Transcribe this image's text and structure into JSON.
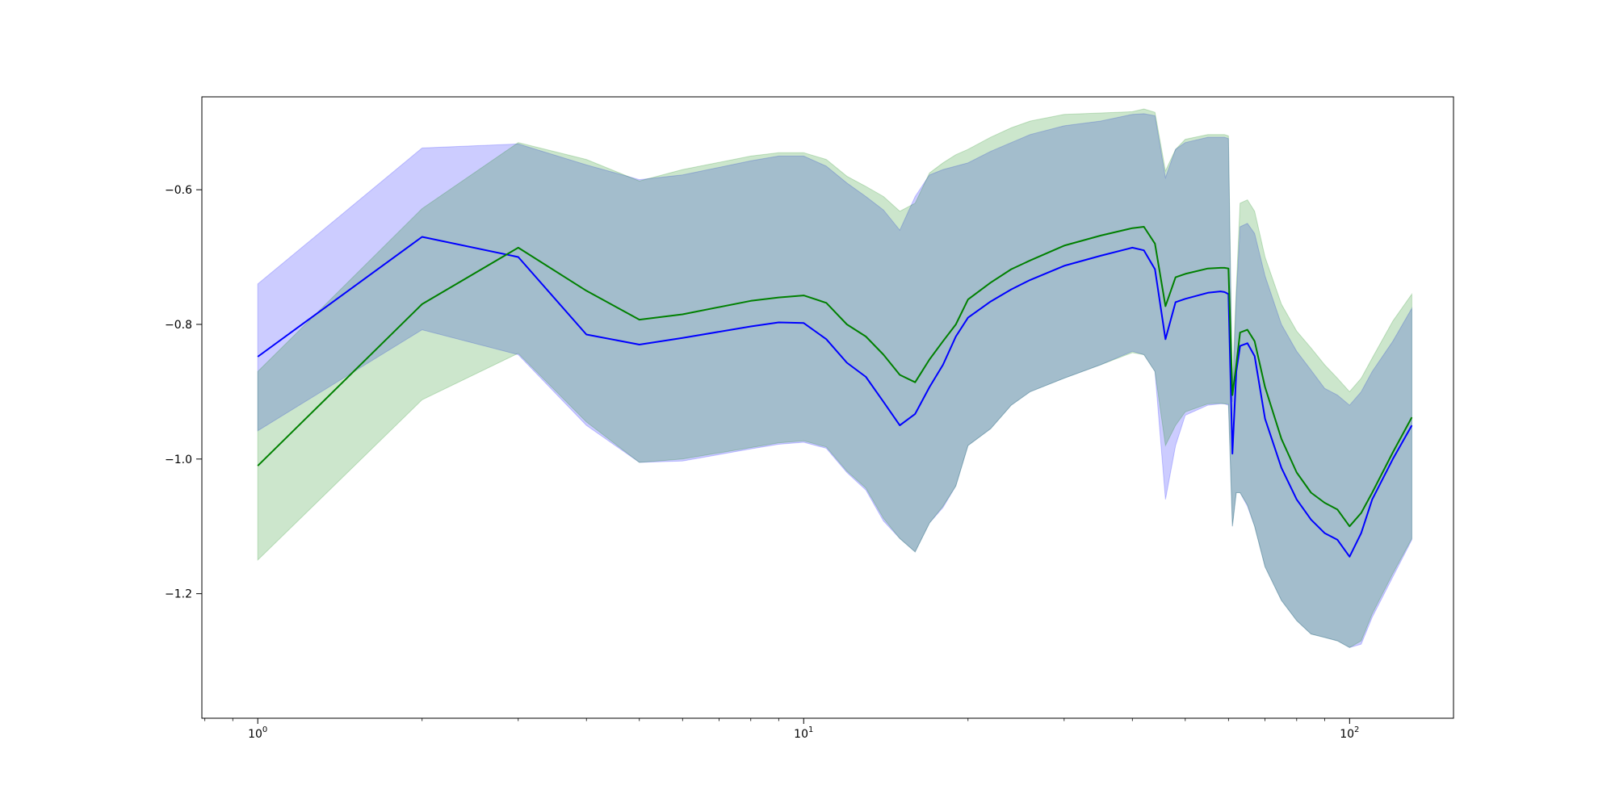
{
  "chart_data": {
    "type": "line",
    "title": "",
    "xlabel": "",
    "ylabel": "",
    "xscale": "log",
    "xlim": [
      0.79,
      155
    ],
    "ylim": [
      -1.385,
      -0.462
    ],
    "grid": false,
    "legend": "none",
    "x_ticks": [
      {
        "value": 1,
        "base": "10",
        "exp": "0"
      },
      {
        "value": 10,
        "base": "10",
        "exp": "1"
      },
      {
        "value": 100,
        "base": "10",
        "exp": "2"
      }
    ],
    "y_ticks": [
      {
        "value": -0.6,
        "label": "−0.6"
      },
      {
        "value": -0.8,
        "label": "−0.8"
      },
      {
        "value": -1.0,
        "label": "−1.0"
      },
      {
        "value": -1.2,
        "label": "−1.2"
      }
    ],
    "series": [
      {
        "color": "#0000ff",
        "band_color": "#0000ff",
        "band_opacity": 0.2,
        "x": [
          1,
          2,
          3,
          4,
          5,
          6,
          8,
          9,
          10,
          11,
          12,
          13,
          14,
          15,
          16,
          17,
          18,
          19,
          20,
          22,
          24,
          26,
          30,
          35,
          40,
          42,
          44,
          46,
          48,
          50,
          55,
          58,
          59,
          60,
          61,
          62,
          63,
          65,
          67,
          70,
          75,
          80,
          85,
          90,
          95,
          100,
          105,
          110,
          120,
          130
        ],
        "y": [
          -0.848,
          -0.67,
          -0.7,
          -0.815,
          -0.83,
          -0.82,
          -0.803,
          -0.797,
          -0.798,
          -0.822,
          -0.857,
          -0.878,
          -0.915,
          -0.95,
          -0.933,
          -0.893,
          -0.86,
          -0.818,
          -0.79,
          -0.766,
          -0.748,
          -0.734,
          -0.713,
          -0.698,
          -0.686,
          -0.69,
          -0.718,
          -0.822,
          -0.767,
          -0.762,
          -0.753,
          -0.751,
          -0.752,
          -0.755,
          -0.992,
          -0.87,
          -0.832,
          -0.828,
          -0.847,
          -0.94,
          -1.013,
          -1.06,
          -1.09,
          -1.11,
          -1.12,
          -1.145,
          -1.11,
          -1.06,
          -1.0,
          -0.95
        ],
        "lower": [
          -0.958,
          -0.808,
          -0.845,
          -0.95,
          -1.005,
          -1.003,
          -0.985,
          -0.978,
          -0.975,
          -0.984,
          -1.02,
          -1.046,
          -1.092,
          -1.118,
          -1.138,
          -1.095,
          -1.072,
          -1.04,
          -0.98,
          -0.955,
          -0.92,
          -0.9,
          -0.88,
          -0.86,
          -0.84,
          -0.845,
          -0.87,
          -1.06,
          -0.98,
          -0.935,
          -0.92,
          -0.918,
          -0.918,
          -0.92,
          -1.1,
          -1.05,
          -1.05,
          -1.07,
          -1.1,
          -1.16,
          -1.21,
          -1.24,
          -1.26,
          -1.265,
          -1.27,
          -1.28,
          -1.275,
          -1.235,
          -1.175,
          -1.12
        ],
        "upper": [
          -0.74,
          -0.538,
          -0.532,
          -0.563,
          -0.585,
          -0.578,
          -0.557,
          -0.55,
          -0.55,
          -0.565,
          -0.59,
          -0.61,
          -0.63,
          -0.66,
          -0.61,
          -0.578,
          -0.57,
          -0.565,
          -0.56,
          -0.543,
          -0.53,
          -0.518,
          -0.505,
          -0.498,
          -0.488,
          -0.487,
          -0.49,
          -0.582,
          -0.54,
          -0.53,
          -0.522,
          -0.522,
          -0.522,
          -0.524,
          -0.915,
          -0.76,
          -0.655,
          -0.65,
          -0.665,
          -0.728,
          -0.8,
          -0.84,
          -0.868,
          -0.895,
          -0.905,
          -0.92,
          -0.9,
          -0.87,
          -0.825,
          -0.776
        ]
      },
      {
        "color": "#008000",
        "band_color": "#008000",
        "band_opacity": 0.2,
        "x": [
          1,
          2,
          3,
          4,
          5,
          6,
          8,
          9,
          10,
          11,
          12,
          13,
          14,
          15,
          16,
          17,
          18,
          19,
          20,
          22,
          24,
          26,
          30,
          35,
          40,
          42,
          44,
          46,
          48,
          50,
          55,
          58,
          59,
          60,
          61,
          62,
          63,
          65,
          67,
          70,
          75,
          80,
          85,
          90,
          95,
          100,
          105,
          110,
          120,
          130
        ],
        "y": [
          -1.01,
          -0.77,
          -0.686,
          -0.75,
          -0.793,
          -0.785,
          -0.765,
          -0.76,
          -0.757,
          -0.768,
          -0.8,
          -0.818,
          -0.845,
          -0.875,
          -0.886,
          -0.852,
          -0.825,
          -0.8,
          -0.763,
          -0.738,
          -0.718,
          -0.705,
          -0.683,
          -0.668,
          -0.657,
          -0.655,
          -0.68,
          -0.773,
          -0.73,
          -0.725,
          -0.717,
          -0.716,
          -0.716,
          -0.717,
          -0.905,
          -0.86,
          -0.812,
          -0.808,
          -0.825,
          -0.893,
          -0.97,
          -1.02,
          -1.05,
          -1.065,
          -1.075,
          -1.1,
          -1.08,
          -1.05,
          -0.99,
          -0.938
        ],
        "lower": [
          -1.15,
          -0.912,
          -0.843,
          -0.945,
          -1.005,
          -1.0,
          -0.983,
          -0.976,
          -0.973,
          -0.982,
          -1.018,
          -1.043,
          -1.088,
          -1.118,
          -1.138,
          -1.095,
          -1.07,
          -1.04,
          -0.98,
          -0.955,
          -0.92,
          -0.9,
          -0.88,
          -0.86,
          -0.842,
          -0.845,
          -0.87,
          -0.98,
          -0.95,
          -0.93,
          -0.918,
          -0.917,
          -0.918,
          -0.918,
          -1.1,
          -1.05,
          -1.05,
          -1.068,
          -1.1,
          -1.16,
          -1.21,
          -1.24,
          -1.26,
          -1.265,
          -1.27,
          -1.28,
          -1.27,
          -1.23,
          -1.17,
          -1.118
        ],
        "upper": [
          -0.87,
          -0.628,
          -0.53,
          -0.555,
          -0.587,
          -0.57,
          -0.55,
          -0.545,
          -0.545,
          -0.555,
          -0.58,
          -0.595,
          -0.61,
          -0.632,
          -0.62,
          -0.575,
          -0.56,
          -0.548,
          -0.54,
          -0.522,
          -0.508,
          -0.498,
          -0.488,
          -0.486,
          -0.484,
          -0.48,
          -0.485,
          -0.572,
          -0.54,
          -0.525,
          -0.518,
          -0.518,
          -0.518,
          -0.52,
          -0.888,
          -0.745,
          -0.62,
          -0.615,
          -0.632,
          -0.7,
          -0.77,
          -0.81,
          -0.835,
          -0.86,
          -0.88,
          -0.9,
          -0.88,
          -0.85,
          -0.795,
          -0.755
        ]
      }
    ]
  }
}
